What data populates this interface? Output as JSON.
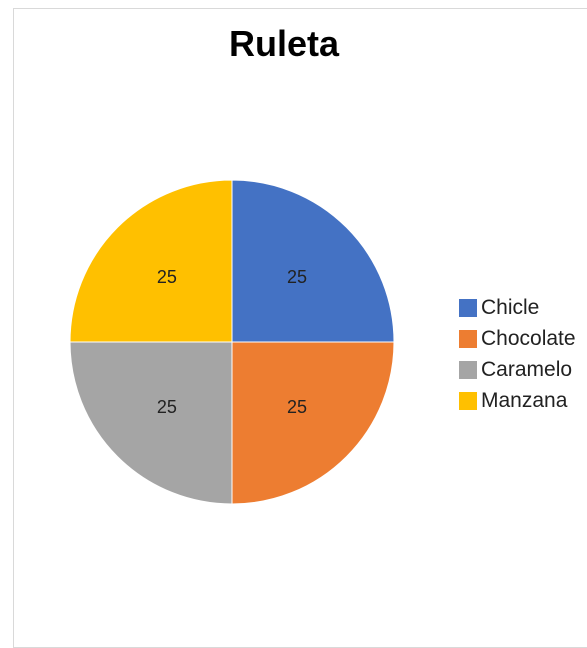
{
  "chart_data": {
    "type": "pie",
    "title": "Ruleta",
    "categories": [
      "Chicle",
      "Chocolate",
      "Caramelo",
      "Manzana"
    ],
    "values": [
      25,
      25,
      25,
      25
    ],
    "data_labels": [
      "25",
      "25",
      "25",
      "25"
    ],
    "colors": [
      "#4472C4",
      "#ED7D31",
      "#A5A5A5",
      "#FFC000"
    ],
    "start_angle": "12 o'clock, clockwise",
    "legend": "right"
  }
}
